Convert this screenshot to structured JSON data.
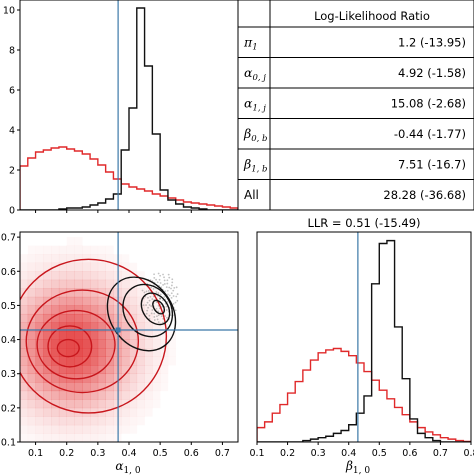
{
  "table": {
    "header": "Log-Likelihood Ratio",
    "rows": [
      {
        "label": "π",
        "sub": "1",
        "value": "1.2 (-13.95)"
      },
      {
        "label": "α",
        "sub": "0, j",
        "value": "4.92 (-1.58)"
      },
      {
        "label": "α",
        "sub": "1, j",
        "value": "15.08 (-2.68)"
      },
      {
        "label": "β",
        "sub": "0, b",
        "value": "-0.44 (-1.77)"
      },
      {
        "label": "β",
        "sub": "1, b",
        "value": "7.51 (-16.7)"
      },
      {
        "label": "All",
        "sub": "",
        "value": "28.28 (-36.68)"
      }
    ]
  },
  "colors": {
    "red": "#e0292a",
    "black": "#111111",
    "blue": "#3b78a8"
  },
  "chart_data": [
    {
      "type": "histogram",
      "panel": "top-left",
      "xlim": [
        0.05,
        0.75
      ],
      "ylim": [
        0,
        10.5
      ],
      "yticks": [
        0,
        2,
        4,
        6,
        8,
        10
      ],
      "xticks": [],
      "vline": 0.365,
      "series": [
        {
          "color": "red",
          "x": [
            0.05,
            0.075,
            0.1,
            0.125,
            0.15,
            0.175,
            0.2,
            0.225,
            0.25,
            0.275,
            0.3,
            0.325,
            0.35,
            0.375,
            0.4,
            0.425,
            0.45,
            0.475,
            0.5,
            0.525,
            0.55,
            0.575,
            0.6,
            0.625,
            0.65,
            0.675,
            0.7,
            0.725,
            0.75
          ],
          "values": [
            2.2,
            2.6,
            2.9,
            3.0,
            3.1,
            3.15,
            3.05,
            2.95,
            2.8,
            2.55,
            2.25,
            1.9,
            1.55,
            1.3,
            1.15,
            1.05,
            0.95,
            0.8,
            0.7,
            0.6,
            0.5,
            0.4,
            0.35,
            0.3,
            0.25,
            0.2,
            0.15,
            0.1
          ]
        },
        {
          "color": "black",
          "x": [
            0.05,
            0.075,
            0.1,
            0.125,
            0.15,
            0.175,
            0.2,
            0.225,
            0.25,
            0.275,
            0.3,
            0.325,
            0.35,
            0.375,
            0.4,
            0.425,
            0.45,
            0.475,
            0.5,
            0.525,
            0.55,
            0.575,
            0.6,
            0.625,
            0.65,
            0.675,
            0.7,
            0.725,
            0.75
          ],
          "values": [
            0,
            0,
            0,
            0,
            0,
            0.05,
            0.1,
            0.1,
            0.15,
            0.25,
            0.35,
            0.55,
            0.8,
            3.0,
            5.1,
            10.1,
            7.2,
            3.8,
            1.0,
            0.5,
            0.3,
            0.15,
            0.1,
            0.05,
            0,
            0,
            0,
            0
          ]
        }
      ]
    },
    {
      "type": "scatter-contour",
      "panel": "bottom-left",
      "xlabel": "α",
      "xlabel_sub": "1, 0",
      "xlim": [
        0.05,
        0.75
      ],
      "ylim": [
        0.1,
        0.715
      ],
      "xticks": [
        0.1,
        0.2,
        0.3,
        0.4,
        0.5,
        0.6,
        0.7
      ],
      "yticks": [
        0.1,
        0.2,
        0.3,
        0.4,
        0.5,
        0.6,
        0.7
      ],
      "vline": 0.365,
      "hline": 0.428,
      "red_contours": [
        {
          "cx": 0.205,
          "cy": 0.375,
          "rx": 0.035,
          "ry": 0.025
        },
        {
          "cx": 0.21,
          "cy": 0.38,
          "rx": 0.07,
          "ry": 0.06
        },
        {
          "cx": 0.23,
          "cy": 0.385,
          "rx": 0.125,
          "ry": 0.1
        },
        {
          "cx": 0.25,
          "cy": 0.395,
          "rx": 0.18,
          "ry": 0.15
        },
        {
          "cx": 0.27,
          "cy": 0.41,
          "rx": 0.25,
          "ry": 0.225
        }
      ],
      "black_contours": [
        {
          "cx": 0.495,
          "cy": 0.495,
          "rx": 0.015,
          "ry": 0.022
        },
        {
          "cx": 0.485,
          "cy": 0.49,
          "rx": 0.04,
          "ry": 0.05
        },
        {
          "cx": 0.46,
          "cy": 0.485,
          "rx": 0.075,
          "ry": 0.08
        },
        {
          "cx": 0.44,
          "cy": 0.475,
          "rx": 0.1,
          "ry": 0.115
        }
      ],
      "point": [
        0.365,
        0.428
      ]
    },
    {
      "type": "histogram",
      "panel": "bottom-right",
      "title": "LLR = 0.51 (-15.49)",
      "xlabel": "β",
      "xlabel_sub": "1, 0",
      "xlim": [
        0.1,
        0.8
      ],
      "ylim": [
        0,
        7.3
      ],
      "xticks": [
        0.1,
        0.2,
        0.3,
        0.4,
        0.5,
        0.6,
        0.7,
        0.8
      ],
      "yticks": [],
      "vline": 0.43,
      "series": [
        {
          "color": "red",
          "x": [
            0.1,
            0.125,
            0.15,
            0.175,
            0.2,
            0.225,
            0.25,
            0.275,
            0.3,
            0.325,
            0.35,
            0.375,
            0.4,
            0.425,
            0.45,
            0.475,
            0.5,
            0.525,
            0.55,
            0.575,
            0.6,
            0.625,
            0.65,
            0.675,
            0.7,
            0.725,
            0.75,
            0.775,
            0.8
          ],
          "values": [
            0.5,
            0.7,
            1.0,
            1.3,
            1.7,
            2.1,
            2.5,
            2.85,
            3.1,
            3.2,
            3.25,
            3.15,
            3.0,
            2.75,
            2.45,
            2.15,
            1.8,
            1.5,
            1.2,
            0.95,
            0.7,
            0.5,
            0.35,
            0.25,
            0.15,
            0.1,
            0.05,
            0.02
          ]
        },
        {
          "color": "black",
          "x": [
            0.1,
            0.125,
            0.15,
            0.175,
            0.2,
            0.225,
            0.25,
            0.275,
            0.3,
            0.325,
            0.35,
            0.375,
            0.4,
            0.425,
            0.45,
            0.475,
            0.5,
            0.525,
            0.55,
            0.575,
            0.6,
            0.625,
            0.65,
            0.675,
            0.7,
            0.725,
            0.75,
            0.775,
            0.8
          ],
          "values": [
            0,
            0,
            0,
            0,
            0,
            0,
            0.05,
            0.1,
            0.15,
            0.2,
            0.3,
            0.4,
            0.6,
            1.0,
            1.6,
            5.5,
            6.9,
            7.0,
            4.0,
            2.2,
            0.8,
            0.3,
            0.15,
            0.05,
            0,
            0,
            0,
            0
          ]
        }
      ]
    }
  ]
}
